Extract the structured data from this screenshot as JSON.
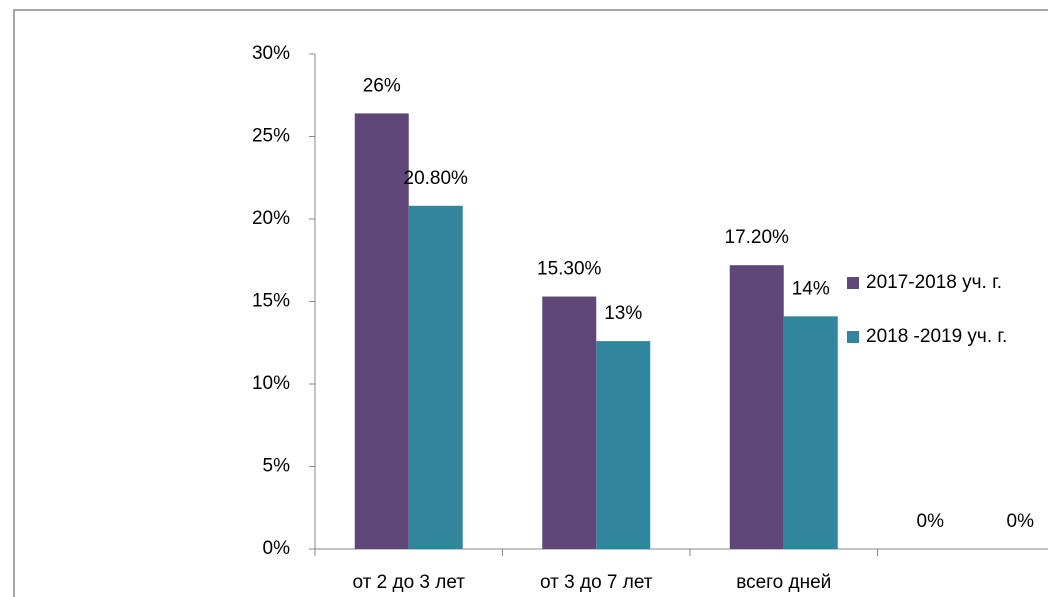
{
  "chart_data": {
    "type": "bar",
    "categories": [
      "от 2 до 3 лет",
      "от 3 до 7 лет",
      "всего дней",
      null
    ],
    "series": [
      {
        "name": "2017-2018 уч.  г.",
        "color": "#5f4879",
        "values": [
          26.4,
          15.3,
          17.2,
          0
        ],
        "value_labels": [
          "26%",
          "15.30%",
          "17.20%",
          "0%"
        ]
      },
      {
        "name": "2018 -2019 уч. г.",
        "color": "#31859c",
        "values": [
          20.8,
          12.6,
          14.1,
          0
        ],
        "value_labels": [
          "20.80%",
          "13%",
          "14%",
          "0%"
        ]
      }
    ],
    "ylim": [
      0,
      30
    ],
    "yticks": [
      {
        "value": 0,
        "label": "0%"
      },
      {
        "value": 5,
        "label": "5%"
      },
      {
        "value": 10,
        "label": "10%"
      },
      {
        "value": 15,
        "label": "15%"
      },
      {
        "value": 20,
        "label": "20%"
      },
      {
        "value": 25,
        "label": "25%"
      },
      {
        "value": 30,
        "label": "30%"
      }
    ],
    "legend": "right",
    "grid": false
  }
}
